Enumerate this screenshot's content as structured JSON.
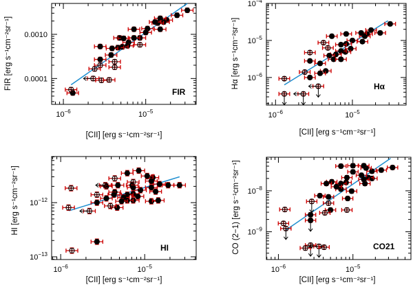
{
  "colors": {
    "errorbar": "#cc0000",
    "fit": "#1f8fd0",
    "marker": "#000000",
    "axis": "#000000"
  },
  "chart_data": [
    {
      "type": "scatter",
      "scale": "log-log",
      "tag": "FIR",
      "xlabel": "[CII] [erg s⁻¹cm⁻²sr⁻¹]",
      "ylabel": "FIR [erg s⁻¹cm⁻²sr⁻¹]",
      "xlim": [
        7.2e-07,
        4.1e-05
      ],
      "ylim": [
        2.6e-05,
        0.005
      ],
      "xticks": [
        {
          "value": 1e-06,
          "base": "10",
          "exp": "−6"
        },
        {
          "value": 1e-05,
          "base": "10",
          "exp": "−5"
        }
      ],
      "yticks": [
        {
          "value": 0.001,
          "label": "0.0010"
        },
        {
          "value": 0.0001,
          "label": "0.0001"
        }
      ],
      "errorbar_dex": {
        "x": 0.07,
        "y": 0.05
      },
      "fit": [
        [
          1.24e-06,
          7.2e-05
        ],
        [
          3.2e-05,
          0.005
        ]
      ],
      "points": [
        [
          3.2e-05,
          0.0035,
          1,
          ""
        ],
        [
          2.4e-05,
          0.0027,
          1,
          ""
        ],
        [
          1.8e-05,
          0.0021,
          1,
          ""
        ],
        [
          1.65e-05,
          0.0019,
          1,
          ""
        ],
        [
          1.5e-05,
          0.0023,
          1,
          ""
        ],
        [
          1.4e-05,
          0.0018,
          1,
          ""
        ],
        [
          1.3e-05,
          0.0019,
          1,
          ""
        ],
        [
          1.5e-05,
          0.0013,
          1,
          ""
        ],
        [
          1.05e-05,
          0.00135,
          1,
          ""
        ],
        [
          1e-05,
          0.0011,
          1,
          ""
        ],
        [
          8.5e-06,
          0.00083,
          1,
          ""
        ],
        [
          7.2e-06,
          0.00083,
          1,
          ""
        ],
        [
          7.2e-06,
          0.0013,
          1,
          ""
        ],
        [
          6.2e-06,
          0.00066,
          1,
          ""
        ],
        [
          6e-06,
          0.00055,
          1,
          ""
        ],
        [
          5.2e-06,
          0.00052,
          1,
          ""
        ],
        [
          4.6e-06,
          0.0005,
          1,
          ""
        ],
        [
          3.9e-06,
          0.00048,
          1,
          ""
        ],
        [
          3.8e-06,
          0.00034,
          1,
          ""
        ],
        [
          4.8e-06,
          0.00083,
          1,
          ""
        ],
        [
          5.4e-06,
          0.00081,
          1,
          ""
        ],
        [
          2.8e-06,
          0.00053,
          1,
          ""
        ],
        [
          2.8e-06,
          0.00027,
          1,
          ""
        ],
        [
          1.3e-06,
          4.7e-05,
          1,
          ""
        ],
        [
          8.5e-06,
          0.00058,
          0,
          ""
        ],
        [
          4.2e-06,
          0.00024,
          0,
          ""
        ],
        [
          4.2e-06,
          0.00018,
          0,
          ""
        ],
        [
          2.8e-06,
          0.0002,
          0,
          ""
        ],
        [
          2.4e-06,
          0.000165,
          0,
          ""
        ],
        [
          2.3e-06,
          0.0001,
          0,
          "left"
        ],
        [
          2.9e-06,
          9.1e-05,
          0,
          ""
        ],
        [
          3.6e-06,
          9.3e-05,
          0,
          ""
        ],
        [
          1.24e-06,
          5.6e-05,
          0,
          ""
        ]
      ]
    },
    {
      "type": "scatter",
      "scale": "log-log",
      "tag": "Hα",
      "xlabel": "[CII] [erg s⁻¹cm⁻²sr⁻¹]",
      "ylabel": "Hα [erg s⁻¹cm⁻²sr⁻¹]",
      "xlim": [
        7.6e-07,
        5e-05
      ],
      "ylim": [
        1.8e-07,
        0.0001
      ],
      "xticks": [
        {
          "value": 1e-06,
          "base": "10",
          "exp": "−6"
        },
        {
          "value": 1e-05,
          "base": "10",
          "exp": "−5"
        }
      ],
      "yticks": [
        {
          "value": 0.0001,
          "base": "10",
          "exp": "−4"
        },
        {
          "value": 1e-05,
          "base": "10",
          "exp": "−5"
        },
        {
          "value": 1e-06,
          "base": "10",
          "exp": "−6"
        }
      ],
      "errorbar_dex": {
        "x": 0.07,
        "y": 0.05
      },
      "fit": [
        [
          1.3e-06,
          6.3e-07
        ],
        [
          2.9e-05,
          3.4e-05
        ]
      ],
      "points": [
        [
          3.1e-05,
          2.8e-05,
          1,
          ""
        ],
        [
          2.3e-05,
          1.6e-05,
          1,
          ""
        ],
        [
          1.75e-05,
          1.9e-05,
          1,
          ""
        ],
        [
          1.55e-05,
          1.5e-05,
          1,
          ""
        ],
        [
          1.45e-05,
          1.3e-05,
          1,
          ""
        ],
        [
          1.3e-05,
          1.6e-05,
          1,
          ""
        ],
        [
          1.35e-05,
          9.3e-06,
          1,
          ""
        ],
        [
          1e-05,
          1e-05,
          1,
          ""
        ],
        [
          9.5e-06,
          6e-06,
          1,
          ""
        ],
        [
          8.3e-06,
          8.1e-06,
          1,
          ""
        ],
        [
          8.3e-06,
          1.5e-05,
          1,
          ""
        ],
        [
          8.1e-06,
          4.9e-06,
          1,
          ""
        ],
        [
          7.1e-06,
          5.2e-06,
          1,
          ""
        ],
        [
          7.1e-06,
          7.7e-06,
          1,
          ""
        ],
        [
          6.1e-06,
          4.2e-06,
          1,
          ""
        ],
        [
          5.4e-06,
          1.3e-05,
          1,
          ""
        ],
        [
          5e-06,
          3.9e-06,
          1,
          ""
        ],
        [
          5.7e-06,
          3.1e-06,
          1,
          ""
        ],
        [
          7.1e-06,
          3.1e-06,
          1,
          ""
        ],
        [
          4.5e-06,
          1.5e-06,
          1,
          ""
        ],
        [
          3.8e-06,
          1.3e-06,
          1,
          ""
        ],
        [
          3.8e-06,
          2.4e-06,
          1,
          ""
        ],
        [
          2.8e-06,
          2.8e-06,
          1,
          ""
        ],
        [
          2.8e-06,
          1e-06,
          1,
          ""
        ],
        [
          4.2e-06,
          8.7e-06,
          0,
          ""
        ],
        [
          4.8e-06,
          6.3e-06,
          0,
          ""
        ],
        [
          2.8e-06,
          4.7e-06,
          0,
          ""
        ],
        [
          2.4e-06,
          1.4e-06,
          0,
          ""
        ],
        [
          1.3e-06,
          9.3e-07,
          0,
          ""
        ],
        [
          3.6e-06,
          5.8e-07,
          0,
          "both"
        ],
        [
          1.3e-06,
          3.6e-07,
          0,
          "down"
        ],
        [
          2.3e-06,
          3.6e-07,
          0,
          "both"
        ]
      ]
    },
    {
      "type": "scatter",
      "scale": "log-log",
      "tag": "HI",
      "xlabel": "[CII] [erg s⁻¹cm⁻²sr⁻¹]",
      "ylabel": "HI [erg s⁻¹cm⁻²sr⁻¹]",
      "xlim": [
        7.8e-07,
        4.1e-05
      ],
      "ylim": [
        8.9e-14,
        7.1e-12
      ],
      "xticks": [
        {
          "value": 1e-06,
          "base": "10",
          "exp": "−6"
        },
        {
          "value": 1e-05,
          "base": "10",
          "exp": "−5"
        }
      ],
      "yticks": [
        {
          "value": 1e-12,
          "base": "10",
          "exp": "−12"
        },
        {
          "value": 1e-13,
          "base": "10",
          "exp": "−13"
        }
      ],
      "errorbar_dex": {
        "x": 0.07,
        "y": 0.05
      },
      "fit": [
        [
          1.26e-06,
          7.1e-13
        ],
        [
          2.6e-05,
          3e-12
        ]
      ],
      "points": [
        [
          2.6e-05,
          2.1e-12,
          1,
          ""
        ],
        [
          1.9e-05,
          2.1e-12,
          1,
          ""
        ],
        [
          1.5e-05,
          2.2e-12,
          1,
          ""
        ],
        [
          1.25e-05,
          2.9e-12,
          1,
          ""
        ],
        [
          1.07e-05,
          3.1e-12,
          1,
          ""
        ],
        [
          8.5e-06,
          3.9e-12,
          1,
          ""
        ],
        [
          6.2e-06,
          3.5e-12,
          1,
          ""
        ],
        [
          1.2e-05,
          2.5e-12,
          1,
          ""
        ],
        [
          1.2e-05,
          1.9e-12,
          1,
          ""
        ],
        [
          1.35e-05,
          1.6e-12,
          1,
          ""
        ],
        [
          8.9e-06,
          1.7e-12,
          1,
          ""
        ],
        [
          7.1e-06,
          2.1e-12,
          1,
          ""
        ],
        [
          7.3e-06,
          1.9e-12,
          1,
          ""
        ],
        [
          7.3e-06,
          1.45e-12,
          1,
          ""
        ],
        [
          8.3e-06,
          1.3e-12,
          1,
          ""
        ],
        [
          7.3e-06,
          1.1e-12,
          1,
          ""
        ],
        [
          6.2e-06,
          1.4e-12,
          1,
          ""
        ],
        [
          6.2e-06,
          1.1e-12,
          1,
          ""
        ],
        [
          5.6e-06,
          1.25e-12,
          1,
          ""
        ],
        [
          5.3e-06,
          1.06e-12,
          1,
          ""
        ],
        [
          4.8e-06,
          2.1e-12,
          1,
          ""
        ],
        [
          4.4e-06,
          1.56e-12,
          1,
          ""
        ],
        [
          4.3e-06,
          1.4e-12,
          1,
          ""
        ],
        [
          3.5e-06,
          1.2e-12,
          1,
          ""
        ],
        [
          3.5e-06,
          2e-12,
          1,
          ""
        ],
        [
          4.7e-06,
          8.1e-13,
          1,
          ""
        ],
        [
          2.7e-06,
          1e-12,
          1,
          ""
        ],
        [
          2.7e-06,
          1.9e-13,
          1,
          ""
        ],
        [
          1.2e-05,
          1.06e-12,
          1,
          ""
        ],
        [
          1.45e-05,
          1.1e-12,
          1,
          ""
        ],
        [
          4.4e-06,
          2.8e-12,
          0,
          ""
        ],
        [
          7.3e-06,
          2.4e-12,
          0,
          ""
        ],
        [
          3.4e-06,
          2.1e-12,
          0,
          "left"
        ],
        [
          2.7e-06,
          1.4e-12,
          0,
          ""
        ],
        [
          1.33e-06,
          1.85e-12,
          0,
          ""
        ],
        [
          1.24e-06,
          8.1e-13,
          0,
          ""
        ],
        [
          2.2e-06,
          7e-13,
          0,
          "left"
        ],
        [
          3.9e-06,
          8.7e-13,
          0,
          ""
        ],
        [
          1.36e-06,
          1.3e-13,
          0,
          ""
        ]
      ]
    },
    {
      "type": "scatter",
      "scale": "log-log",
      "tag": "CO21",
      "xlabel": "[CII] [erg s⁻¹cm⁻²sr⁻¹]",
      "ylabel": "CO (2−1) [erg s⁻¹cm⁻²sr⁻¹]",
      "xlim": [
        6.9e-07,
        6e-05
      ],
      "ylim": [
        2.1e-10,
        6.6e-08
      ],
      "xticks": [
        {
          "value": 1e-06,
          "base": "10",
          "exp": "−6"
        },
        {
          "value": 1e-05,
          "base": "10",
          "exp": "−5"
        }
      ],
      "yticks": [
        {
          "value": 1e-08,
          "base": "10",
          "exp": "−8"
        },
        {
          "value": 1e-09,
          "base": "10",
          "exp": "−9"
        }
      ],
      "errorbar_dex": {
        "x": 0.07,
        "y": 0.05
      },
      "fit": [
        [
          1.26e-06,
          1.1e-09
        ],
        [
          3.2e-05,
          6.2e-08
        ]
      ],
      "points": [
        [
          3.4e-05,
          3.7e-08,
          1,
          ""
        ],
        [
          2.4e-05,
          3.2e-08,
          1,
          ""
        ],
        [
          1.8e-05,
          3e-08,
          1,
          ""
        ],
        [
          1.8e-05,
          2e-08,
          1,
          ""
        ],
        [
          1.6e-05,
          2.1e-08,
          1,
          ""
        ],
        [
          1.5e-05,
          3.6e-08,
          1,
          ""
        ],
        [
          1.4e-05,
          4.1e-08,
          1,
          ""
        ],
        [
          1.3e-05,
          2.4e-08,
          1,
          ""
        ],
        [
          1.45e-05,
          1.5e-08,
          1,
          ""
        ],
        [
          1.4e-05,
          1.9e-08,
          1,
          ""
        ],
        [
          1e-05,
          2.9e-08,
          1,
          ""
        ],
        [
          1e-05,
          4.1e-08,
          1,
          ""
        ],
        [
          9.6e-06,
          9.8e-09,
          1,
          ""
        ],
        [
          8.3e-06,
          2.1e-08,
          1,
          ""
        ],
        [
          8.1e-06,
          1.6e-08,
          1,
          ""
        ],
        [
          8.5e-06,
          6.5e-09,
          1,
          ""
        ],
        [
          6.9e-06,
          4e-08,
          1,
          ""
        ],
        [
          6.9e-06,
          1.1e-08,
          1,
          ""
        ],
        [
          6.9e-06,
          1.5e-08,
          1,
          ""
        ],
        [
          6e-06,
          1.26e-08,
          1,
          ""
        ],
        [
          5.2e-06,
          1.66e-08,
          1,
          ""
        ],
        [
          4.4e-06,
          1.5e-08,
          1,
          ""
        ],
        [
          4.7e-06,
          7.1e-09,
          1,
          ""
        ],
        [
          3.6e-06,
          7.6e-09,
          1,
          ""
        ],
        [
          5e-06,
          3.4e-09,
          1,
          ""
        ],
        [
          2.7e-06,
          2.6e-09,
          1,
          ""
        ],
        [
          2.7e-06,
          1.9e-09,
          1,
          "down"
        ],
        [
          2.8e-06,
          5.5e-09,
          0,
          "down"
        ],
        [
          4.7e-06,
          5e-09,
          0,
          ""
        ],
        [
          4.2e-06,
          2.9e-09,
          0,
          ""
        ],
        [
          8.3e-06,
          3.4e-09,
          0,
          ""
        ],
        [
          1.22e-06,
          3.5e-09,
          0,
          ""
        ],
        [
          1.17e-06,
          1.6e-09,
          0,
          ""
        ],
        [
          1.26e-06,
          1.2e-09,
          0,
          "down"
        ],
        [
          2.7e-06,
          4.7e-10,
          0,
          "down"
        ],
        [
          2.3e-06,
          4e-10,
          0,
          ""
        ],
        [
          3.5e-06,
          4.4e-10,
          0,
          "both"
        ],
        [
          4.1e-06,
          4.2e-10,
          0,
          ""
        ]
      ]
    }
  ]
}
